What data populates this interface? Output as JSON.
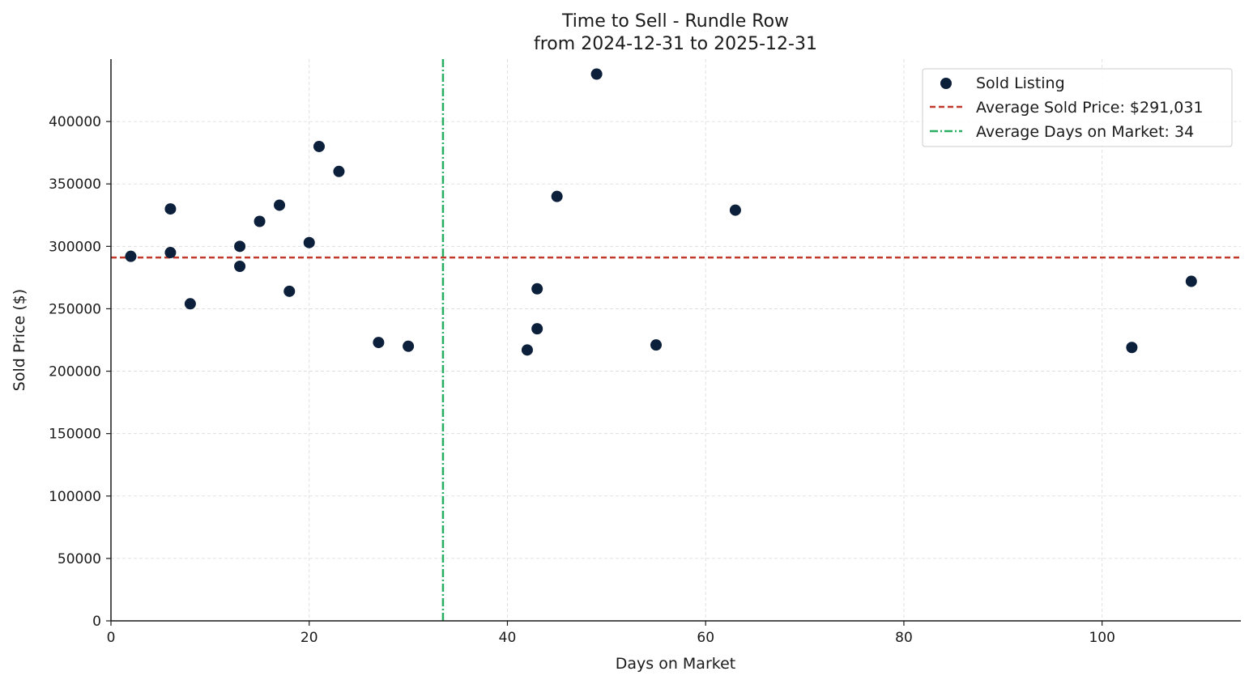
{
  "chart_data": {
    "type": "scatter",
    "title": "Time to Sell - Rundle Row",
    "subtitle": "from 2024-12-31 to 2025-12-31",
    "xlabel": "Days on Market",
    "ylabel": "Sold Price ($)",
    "xlim": [
      0,
      114
    ],
    "ylim": [
      0,
      450000
    ],
    "x_ticks": [
      0,
      20,
      40,
      60,
      80,
      100
    ],
    "y_ticks": [
      0,
      50000,
      100000,
      150000,
      200000,
      250000,
      300000,
      350000,
      400000
    ],
    "grid": true,
    "legend_position": "top-right",
    "colors": {
      "points": "#0c1f3b",
      "avg_price_line": "#c0392b",
      "avg_days_line": "#27ae60",
      "grid": "#d9d9d9",
      "axis": "#1a1a1a"
    },
    "series": [
      {
        "name": "Sold Listing",
        "points": [
          {
            "x": 2,
            "y": 292000
          },
          {
            "x": 6,
            "y": 330000
          },
          {
            "x": 6,
            "y": 295000
          },
          {
            "x": 8,
            "y": 254000
          },
          {
            "x": 13,
            "y": 300000
          },
          {
            "x": 13,
            "y": 284000
          },
          {
            "x": 15,
            "y": 320000
          },
          {
            "x": 17,
            "y": 333000
          },
          {
            "x": 18,
            "y": 264000
          },
          {
            "x": 20,
            "y": 303000
          },
          {
            "x": 21,
            "y": 380000
          },
          {
            "x": 23,
            "y": 360000
          },
          {
            "x": 27,
            "y": 223000
          },
          {
            "x": 30,
            "y": 220000
          },
          {
            "x": 42,
            "y": 217000
          },
          {
            "x": 43,
            "y": 266000
          },
          {
            "x": 43,
            "y": 234000
          },
          {
            "x": 45,
            "y": 340000
          },
          {
            "x": 49,
            "y": 438000
          },
          {
            "x": 55,
            "y": 221000
          },
          {
            "x": 63,
            "y": 329000
          },
          {
            "x": 103,
            "y": 219000
          },
          {
            "x": 109,
            "y": 272000
          }
        ]
      }
    ],
    "reference_lines": [
      {
        "name": "Average Sold Price: $291,031",
        "orientation": "horizontal",
        "value": 291031,
        "style": "dashed"
      },
      {
        "name": "Average Days on Market: 34",
        "orientation": "vertical",
        "value": 33.5,
        "style": "dashdot"
      }
    ]
  }
}
